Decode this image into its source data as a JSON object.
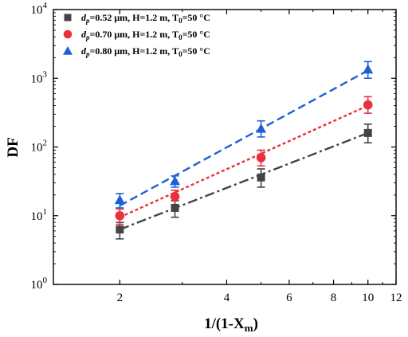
{
  "chart_data": {
    "type": "scatter",
    "xlabel": "1/(1-X",
    "xlabel_sub": "m",
    "xlabel_close": ")",
    "ylabel": "DF",
    "xlim": [
      1.3,
      12
    ],
    "ylim": [
      1,
      10000
    ],
    "x_scale": "log",
    "y_scale": "log",
    "x_ticks": [
      2,
      4,
      6,
      8,
      10,
      12
    ],
    "y_ticks": [
      {
        "value": 1,
        "base": "10",
        "exp": "0"
      },
      {
        "value": 10,
        "base": "10",
        "exp": "1"
      },
      {
        "value": 100,
        "base": "10",
        "exp": "2"
      },
      {
        "value": 1000,
        "base": "10",
        "exp": "3"
      },
      {
        "value": 10000,
        "base": "10",
        "exp": "4"
      }
    ],
    "grid": false,
    "legend_position": "top-left",
    "series": [
      {
        "legend": {
          "d": "d",
          "p": "p",
          "rest": "=0.52 μm, H=1.2 m, T",
          "zero": "0",
          "tail": "=50 °C"
        },
        "marker": "square",
        "color": "#444444",
        "line_style": "dash-dot",
        "x": [
          2,
          2.86,
          5,
          10
        ],
        "y": [
          6.3,
          13,
          36,
          160
        ],
        "err_low": [
          1.7,
          3.5,
          10,
          45
        ],
        "err_high": [
          1.7,
          3.5,
          12,
          55
        ],
        "fit": [
          [
            2,
            6.3
          ],
          [
            10,
            160
          ]
        ]
      },
      {
        "legend": {
          "d": "d",
          "p": "p",
          "rest": "=0.70 μm, H=1.2 m, T",
          "zero": "0",
          "tail": "=50 °C"
        },
        "marker": "circle",
        "color": "#e8313a",
        "line_style": "dotted",
        "x": [
          2,
          2.86,
          5,
          10
        ],
        "y": [
          10,
          19,
          70,
          410
        ],
        "err_low": [
          2.5,
          4.5,
          17,
          100
        ],
        "err_high": [
          2.5,
          4.5,
          20,
          130
        ],
        "fit": [
          [
            2,
            9.5
          ],
          [
            10,
            400
          ]
        ]
      },
      {
        "legend": {
          "d": "d",
          "p": "p",
          "rest": "=0.80 μm, H=1.2 m, T",
          "zero": "0",
          "tail": "=50 °C"
        },
        "marker": "triangle",
        "color": "#1f5fd6",
        "line_style": "dashed",
        "x": [
          2,
          2.86,
          5,
          10
        ],
        "y": [
          17,
          32,
          185,
          1350
        ],
        "err_low": [
          4,
          6,
          45,
          350
        ],
        "err_high": [
          4,
          6,
          55,
          400
        ],
        "fit": [
          [
            2,
            14
          ],
          [
            10,
            1300
          ]
        ]
      }
    ]
  }
}
